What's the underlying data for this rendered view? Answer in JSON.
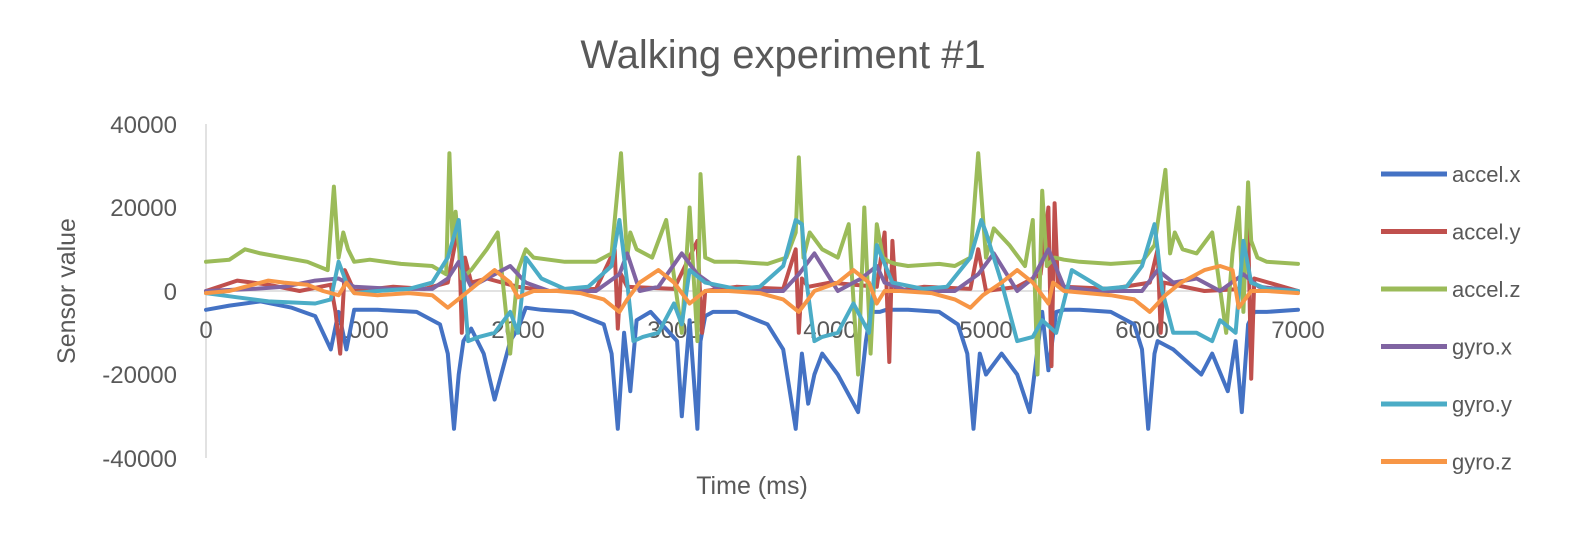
{
  "chart_data": {
    "type": "line",
    "title": "Walking experiment #1",
    "xlabel": "Time (ms)",
    "ylabel": "Sensor value",
    "xlim": [
      0,
      7000
    ],
    "ylim": [
      -40000,
      40000
    ],
    "x_ticks": [
      "0",
      "1000",
      "2000",
      "3000",
      "4000",
      "5000",
      "6000",
      "7000"
    ],
    "y_ticks": [
      "40000",
      "20000",
      "0",
      "-20000",
      "-40000"
    ],
    "legend_position": "right",
    "grid": false,
    "series": [
      {
        "name": "accel.x",
        "color": "#4472C4",
        "x": [
          0,
          150,
          350,
          550,
          700,
          800,
          850,
          900,
          950,
          1100,
          1350,
          1500,
          1550,
          1590,
          1620,
          1650,
          1700,
          1780,
          1850,
          1950,
          2000,
          2050,
          2150,
          2350,
          2550,
          2600,
          2640,
          2680,
          2720,
          2760,
          2850,
          3020,
          3050,
          3100,
          3150,
          3170,
          3200,
          3250,
          3400,
          3600,
          3700,
          3780,
          3820,
          3860,
          3900,
          3950,
          4050,
          4180,
          4230,
          4260,
          4320,
          4360,
          4500,
          4700,
          4820,
          4880,
          4920,
          4960,
          5000,
          5100,
          5200,
          5280,
          5330,
          5360,
          5400,
          5450,
          5500,
          5600,
          5800,
          5950,
          6000,
          6040,
          6080,
          6100,
          6200,
          6380,
          6450,
          6550,
          6600,
          6640,
          6680,
          6720,
          6800,
          7000
        ],
        "values": [
          -4500,
          -3500,
          -2500,
          -4000,
          -6000,
          -14000,
          -5000,
          -14000,
          -4500,
          -4500,
          -5000,
          -8000,
          -15000,
          -33000,
          -20000,
          -12000,
          -9000,
          -15000,
          -26000,
          -12000,
          -9000,
          -4000,
          -4500,
          -5000,
          -8000,
          -15000,
          -33000,
          -10000,
          -24000,
          -7000,
          -5000,
          -12000,
          -30000,
          -7000,
          -33000,
          -12000,
          -6000,
          -5000,
          -5000,
          -8000,
          -14000,
          -33000,
          -15000,
          -27000,
          -20000,
          -15000,
          -20000,
          -29000,
          -12000,
          -5000,
          -5000,
          -4500,
          -4500,
          -5000,
          -8000,
          -15000,
          -33000,
          -15000,
          -20000,
          -15000,
          -20000,
          -29000,
          -14000,
          -5000,
          -19000,
          -5000,
          -4500,
          -4500,
          -5000,
          -8000,
          -14000,
          -33000,
          -15000,
          -12000,
          -14000,
          -20000,
          -15000,
          -24000,
          -12000,
          -29000,
          -8000,
          -5000,
          -5000,
          -4500
        ]
      },
      {
        "name": "accel.y",
        "color": "#C0504D",
        "x": [
          0,
          200,
          400,
          600,
          800,
          830,
          860,
          890,
          950,
          1200,
          1400,
          1550,
          1620,
          1640,
          1660,
          1700,
          1800,
          2000,
          2200,
          2500,
          2620,
          2640,
          2660,
          2700,
          3000,
          3150,
          3180,
          3200,
          3400,
          3700,
          3780,
          3800,
          3820,
          3860,
          4000,
          4300,
          4350,
          4380,
          4400,
          4420,
          4600,
          4900,
          4950,
          5000,
          5200,
          5350,
          5400,
          5420,
          5440,
          5460,
          5500,
          5800,
          6050,
          6100,
          6120,
          6140,
          6400,
          6650,
          6680,
          6700,
          6720,
          7000
        ],
        "values": [
          0,
          2500,
          1500,
          0,
          1500,
          -5000,
          -15000,
          5000,
          0,
          1000,
          500,
          2000,
          16000,
          -10000,
          8000,
          2000,
          3000,
          1000,
          0,
          500,
          10000,
          -9000,
          4000,
          1000,
          500,
          12000,
          -10000,
          0,
          1000,
          500,
          10000,
          -10000,
          3000,
          1000,
          2000,
          1000,
          14000,
          -17000,
          12000,
          0,
          1000,
          500,
          10000,
          0,
          1000,
          4000,
          20000,
          -18000,
          21000,
          2000,
          1000,
          500,
          2000,
          10000,
          -10000,
          2000,
          0,
          500,
          16000,
          -21000,
          3000,
          0
        ]
      },
      {
        "name": "accel.z",
        "color": "#9BBB59",
        "x": [
          0,
          150,
          250,
          350,
          500,
          650,
          780,
          820,
          850,
          880,
          910,
          950,
          1050,
          1250,
          1450,
          1540,
          1560,
          1580,
          1600,
          1640,
          1700,
          1800,
          1870,
          1950,
          2000,
          2050,
          2100,
          2300,
          2500,
          2600,
          2660,
          2700,
          2720,
          2760,
          2860,
          2950,
          3050,
          3100,
          3150,
          3170,
          3200,
          3260,
          3400,
          3600,
          3720,
          3780,
          3800,
          3830,
          3870,
          3950,
          4050,
          4120,
          4180,
          4220,
          4260,
          4300,
          4340,
          4380,
          4420,
          4500,
          4700,
          4800,
          4900,
          4950,
          5000,
          5050,
          5150,
          5250,
          5300,
          5330,
          5360,
          5390,
          5440,
          5500,
          5600,
          5800,
          6000,
          6080,
          6150,
          6180,
          6210,
          6260,
          6350,
          6450,
          6540,
          6580,
          6620,
          6650,
          6680,
          6700,
          6740,
          6800,
          7000
        ],
        "values": [
          7000,
          7500,
          10000,
          9000,
          8000,
          7000,
          5000,
          25000,
          8000,
          14000,
          10000,
          7000,
          7500,
          6500,
          6000,
          4000,
          33000,
          12000,
          19000,
          3000,
          5000,
          10000,
          14000,
          -15000,
          5000,
          10000,
          8000,
          7000,
          7000,
          9000,
          33000,
          8000,
          14000,
          10000,
          8000,
          17000,
          -10000,
          20000,
          -12000,
          28000,
          8000,
          7000,
          7000,
          6500,
          8000,
          14000,
          32000,
          8000,
          14000,
          10000,
          8000,
          16000,
          -20000,
          20000,
          -15000,
          16000,
          8000,
          7000,
          6500,
          6000,
          6500,
          6000,
          8000,
          33000,
          8000,
          15000,
          11000,
          6000,
          17000,
          -20000,
          24000,
          6000,
          8000,
          7500,
          7000,
          6500,
          7000,
          11000,
          29000,
          9000,
          14000,
          10000,
          9000,
          14000,
          -10000,
          9000,
          20000,
          -5000,
          26000,
          12000,
          8000,
          7000,
          6500
        ]
      },
      {
        "name": "gyro.x",
        "color": "#8064A2",
        "x": [
          0,
          300,
          500,
          700,
          850,
          950,
          1200,
          1450,
          1550,
          1620,
          1700,
          1850,
          1950,
          2050,
          2200,
          2500,
          2650,
          2700,
          2780,
          2900,
          3050,
          3150,
          3300,
          3700,
          3800,
          3900,
          4050,
          4200,
          4300,
          4350,
          4500,
          4800,
          4950,
          5050,
          5200,
          5300,
          5400,
          5500,
          5700,
          6000,
          6100,
          6200,
          6350,
          6500,
          6650,
          6750,
          7000
        ],
        "values": [
          0,
          500,
          1000,
          2500,
          3000,
          1000,
          500,
          500,
          3000,
          7000,
          1000,
          4000,
          6000,
          2000,
          0,
          0,
          4000,
          9000,
          0,
          1000,
          9000,
          4000,
          0,
          0,
          4000,
          9000,
          0,
          3000,
          6000,
          2000,
          0,
          0,
          4000,
          9000,
          0,
          3000,
          10000,
          1000,
          0,
          0,
          5000,
          2000,
          3000,
          0,
          4000,
          1000,
          0
        ]
      },
      {
        "name": "gyro.y",
        "color": "#4BACC6",
        "x": [
          0,
          200,
          400,
          700,
          800,
          850,
          900,
          950,
          1100,
          1300,
          1450,
          1550,
          1620,
          1650,
          1680,
          1750,
          1850,
          1950,
          2000,
          2050,
          2150,
          2300,
          2450,
          2600,
          2650,
          2700,
          2740,
          2800,
          2900,
          3000,
          3050,
          3100,
          3200,
          3400,
          3550,
          3700,
          3780,
          3820,
          3850,
          3900,
          3950,
          4050,
          4150,
          4250,
          4300,
          4400,
          4600,
          4750,
          4900,
          4970,
          5000,
          5100,
          5200,
          5300,
          5360,
          5450,
          5550,
          5750,
          5900,
          6000,
          6080,
          6100,
          6130,
          6200,
          6350,
          6450,
          6500,
          6600,
          6650,
          6700,
          6800,
          7000
        ],
        "values": [
          -500,
          -1500,
          -2500,
          -3000,
          -2000,
          7000,
          2000,
          -500,
          0,
          500,
          2000,
          8000,
          17000,
          3000,
          -12000,
          -11000,
          -10000,
          -5000,
          -10000,
          8000,
          3000,
          500,
          1000,
          6000,
          17000,
          2000,
          -12000,
          -11000,
          -10000,
          -3000,
          -8000,
          5000,
          2000,
          500,
          1000,
          6000,
          17000,
          16000,
          2000,
          -12000,
          -11000,
          -10000,
          -3000,
          -10000,
          11000,
          2000,
          500,
          1000,
          8000,
          17000,
          14000,
          2000,
          -12000,
          -11000,
          -7000,
          -10000,
          5000,
          500,
          1000,
          6000,
          16000,
          10000,
          0,
          -10000,
          -10000,
          -12000,
          -7000,
          -10000,
          12000,
          2000,
          500,
          0
        ]
      },
      {
        "name": "gyro.z",
        "color": "#F79646",
        "x": [
          0,
          150,
          250,
          400,
          500,
          650,
          750,
          850,
          900,
          950,
          1100,
          1300,
          1450,
          1550,
          1650,
          1750,
          1850,
          1950,
          2000,
          2100,
          2250,
          2400,
          2550,
          2650,
          2700,
          2780,
          2900,
          3000,
          3100,
          3200,
          3350,
          3550,
          3700,
          3800,
          3900,
          4050,
          4150,
          4250,
          4300,
          4350,
          4450,
          4650,
          4800,
          4900,
          4980,
          5100,
          5200,
          5300,
          5400,
          5430,
          5500,
          5650,
          5800,
          5950,
          6050,
          6150,
          6250,
          6400,
          6500,
          6580,
          6620,
          6700,
          6800,
          7000
        ],
        "values": [
          -500,
          0,
          1000,
          2500,
          2000,
          1500,
          0,
          -1000,
          2000,
          -500,
          -1000,
          -500,
          -1000,
          -4000,
          -1000,
          2000,
          5000,
          2000,
          -1500,
          0,
          0,
          -500,
          -2000,
          -5000,
          -2000,
          2000,
          5000,
          2000,
          -3000,
          0,
          0,
          -500,
          -2000,
          -5000,
          0,
          2000,
          5000,
          2000,
          -3000,
          0,
          0,
          -500,
          -2000,
          -4000,
          -1000,
          2000,
          5000,
          2000,
          -3000,
          2000,
          0,
          -500,
          -1000,
          -2000,
          -5000,
          -1000,
          2000,
          5000,
          6000,
          5000,
          -4000,
          0,
          0,
          -500
        ]
      }
    ]
  }
}
